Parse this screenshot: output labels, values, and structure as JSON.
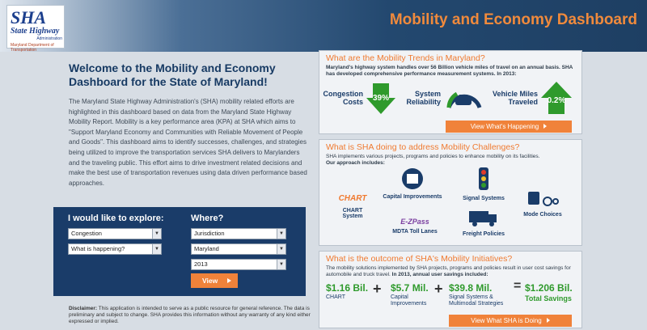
{
  "header": {
    "logo": {
      "sha": "SHA",
      "state_highway": "State Highway",
      "administration": "Administration",
      "mdot": "Maryland Department of Transportation"
    },
    "title": "Mobility and Economy Dashboard"
  },
  "welcome": {
    "title": "Welcome to the Mobility and Economy Dashboard for the State of Maryland!",
    "body": "The Maryland State Highway Administration's (SHA) mobility related efforts are highlighted in this dashboard based on data from the Maryland State Highway Mobility Report. Mobility is a key performance area (KPA) at SHA which aims to \"Support Maryland Economy and Communities with Reliable Movement of People and Goods\". This dashboard aims to identify successes, challenges, and strategies being utilized to improve the transportation services SHA delivers to Marylanders and the traveling public. This effort aims to drive investment related decisions and make the best use of transportation revenues using data driven performance based approaches."
  },
  "explore": {
    "heading": "I would like to explore:",
    "topic": "Congestion",
    "question": "What is happening?",
    "where_heading": "Where?",
    "scope": "Jurisdiction",
    "place": "Maryland",
    "year": "2013",
    "view_label": "View"
  },
  "disclaimer": {
    "label": "Disclaimer:",
    "text": " This application is intended to serve as a public resource for general reference. The data is preliminary and subject to change. SHA provides this information without any warranty of any kind either expressed or implied."
  },
  "trends": {
    "title": "What are the Mobility Trends in Maryland?",
    "text": "Maryland's highway system handles over 56 Billion vehicle miles of travel on an annual basis. SHA has developed comprehensive performance measurement systems. In 2013:",
    "congestion_label": "Congestion Costs",
    "congestion_pct": "39%",
    "reliability_label": "System Reliability",
    "vmt_label": "Vehicle Miles Traveled",
    "vmt_pct": "0.2%",
    "button": "View What's Happening"
  },
  "challenges": {
    "title": "What is SHA doing to address Mobility Challenges?",
    "text": "SHA implements various projects, programs and policies to enhance mobility on its facilities.",
    "approach": "Our approach includes:",
    "items": [
      {
        "label": "CHART System",
        "logo": "CHART"
      },
      {
        "label": "Capital Improvements"
      },
      {
        "label": "Signal Systems"
      },
      {
        "label": "Mode Choices"
      },
      {
        "label": "MDTA Toll Lanes",
        "logo": "E-ZPass"
      },
      {
        "label": "Freight Policies"
      }
    ]
  },
  "outcome": {
    "title": "What is the outcome of SHA's Mobility Initiatives?",
    "text": "The mobility solutions implemented by SHA projects, programs and policies result in user cost savings for automobile and truck travel.",
    "text_bold": " In 2013, annual user savings included:",
    "items": [
      {
        "value": "$1.16 Bil.",
        "label": "CHART"
      },
      {
        "value": "$5.7 Mil.",
        "label": "Capital Improvements"
      },
      {
        "value": "$39.8 Mil.",
        "label": "Signal Systems & Multimodal Strategies"
      }
    ],
    "total_value": "$1.206 Bil.",
    "total_label": "Total Savings",
    "button": "View What SHA is Doing"
  },
  "colors": {
    "accent": "#f0823a",
    "navy": "#1a3c69",
    "green": "#2f9a2c"
  }
}
